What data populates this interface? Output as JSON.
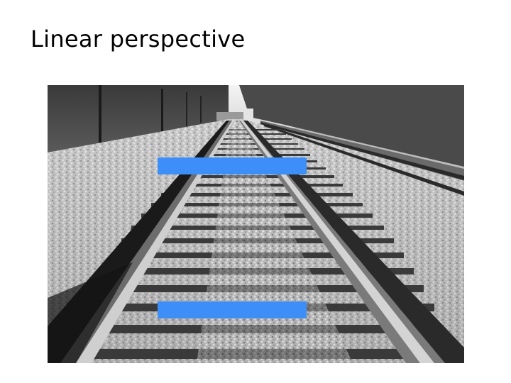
{
  "slide": {
    "title": "Linear perspective"
  },
  "photo": {
    "subject": "railroad-tracks-photo"
  },
  "markers": {
    "color": "#3d8ef7",
    "count": 2
  }
}
